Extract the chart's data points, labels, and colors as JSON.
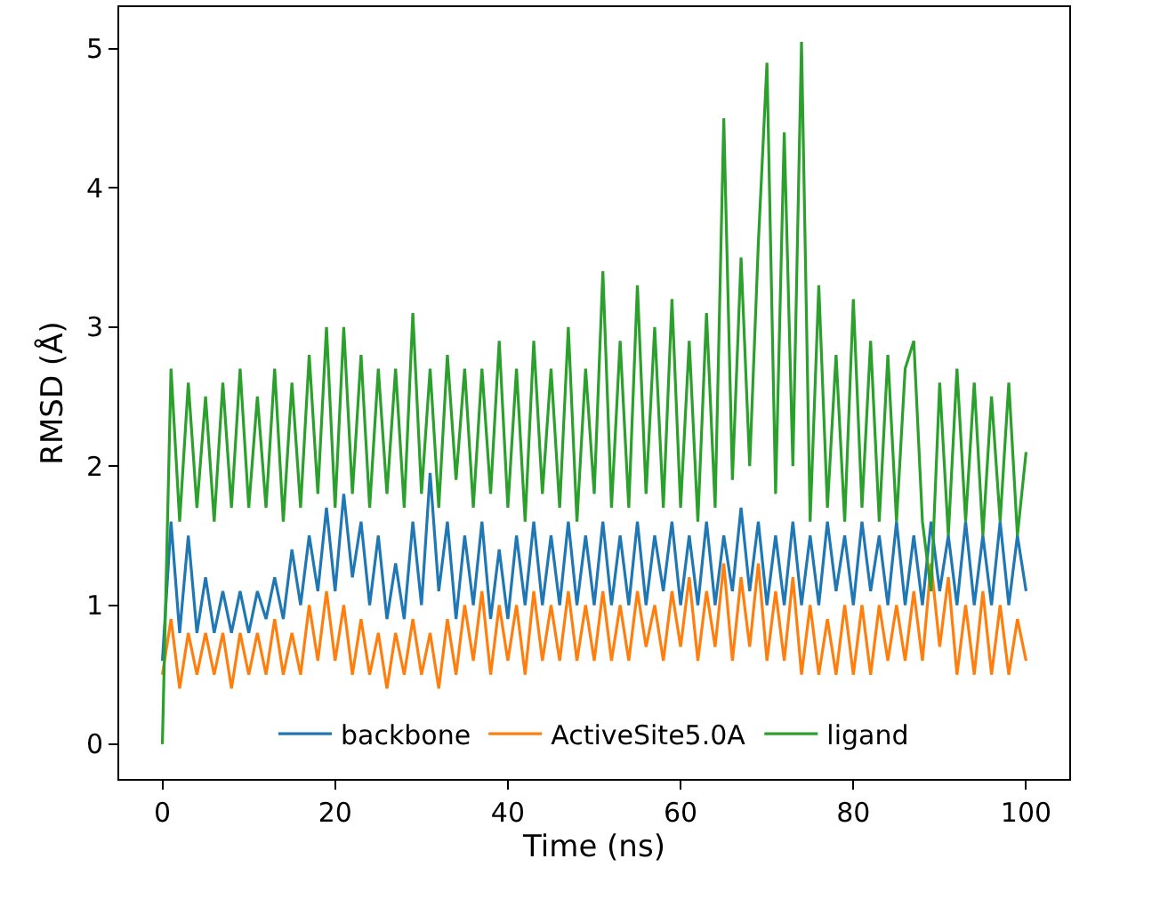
{
  "chart_data": {
    "type": "line",
    "xlabel": "Time (ns)",
    "ylabel": "RMSD (Å)",
    "xlim": [
      -5,
      105
    ],
    "ylim": [
      -0.25,
      5.3
    ],
    "xticks": [
      0,
      20,
      40,
      60,
      80,
      100
    ],
    "yticks": [
      0,
      1,
      2,
      3,
      4,
      5
    ],
    "grid": false,
    "legend": "bottom",
    "marker": "none",
    "line_style": "solid",
    "x": [
      0,
      1,
      2,
      3,
      4,
      5,
      6,
      7,
      8,
      9,
      10,
      11,
      12,
      13,
      14,
      15,
      16,
      17,
      18,
      19,
      20,
      21,
      22,
      23,
      24,
      25,
      26,
      27,
      28,
      29,
      30,
      31,
      32,
      33,
      34,
      35,
      36,
      37,
      38,
      39,
      40,
      41,
      42,
      43,
      44,
      45,
      46,
      47,
      48,
      49,
      50,
      51,
      52,
      53,
      54,
      55,
      56,
      57,
      58,
      59,
      60,
      61,
      62,
      63,
      64,
      65,
      66,
      67,
      68,
      69,
      70,
      71,
      72,
      73,
      74,
      75,
      76,
      77,
      78,
      79,
      80,
      81,
      82,
      83,
      84,
      85,
      86,
      87,
      88,
      89,
      90,
      91,
      92,
      93,
      94,
      95,
      96,
      97,
      98,
      99,
      100
    ],
    "series": [
      {
        "name": "backbone",
        "color": "#1f77b4",
        "values": [
          0.6,
          1.6,
          0.8,
          1.5,
          0.8,
          1.2,
          0.8,
          1.1,
          0.8,
          1.1,
          0.8,
          1.1,
          0.9,
          1.2,
          0.9,
          1.4,
          1.0,
          1.5,
          1.1,
          1.7,
          1.1,
          1.8,
          1.2,
          1.6,
          1.0,
          1.5,
          0.9,
          1.3,
          0.9,
          1.6,
          1.0,
          1.95,
          1.1,
          1.6,
          0.9,
          1.5,
          1.0,
          1.6,
          0.9,
          1.4,
          0.9,
          1.5,
          1.0,
          1.6,
          1.0,
          1.5,
          1.0,
          1.6,
          1.0,
          1.5,
          1.0,
          1.6,
          1.0,
          1.5,
          1.0,
          1.6,
          1.0,
          1.5,
          1.1,
          1.6,
          1.0,
          1.5,
          1.0,
          1.6,
          1.0,
          1.5,
          1.1,
          1.7,
          1.1,
          1.6,
          1.0,
          1.5,
          1.0,
          1.6,
          1.0,
          1.5,
          1.0,
          1.6,
          1.1,
          1.5,
          1.0,
          1.6,
          1.1,
          1.5,
          1.0,
          1.6,
          1.0,
          1.5,
          1.0,
          1.6,
          1.1,
          1.5,
          1.0,
          1.6,
          1.0,
          1.5,
          1.0,
          1.6,
          1.0,
          1.5,
          1.1
        ]
      },
      {
        "name": "ActiveSite5.0A",
        "color": "#ff7f0e",
        "values": [
          0.5,
          0.9,
          0.4,
          0.8,
          0.5,
          0.8,
          0.5,
          0.8,
          0.4,
          0.8,
          0.5,
          0.8,
          0.5,
          0.9,
          0.5,
          0.8,
          0.5,
          1.0,
          0.6,
          1.1,
          0.6,
          1.0,
          0.5,
          0.9,
          0.5,
          0.8,
          0.4,
          0.8,
          0.5,
          0.9,
          0.5,
          0.8,
          0.4,
          0.9,
          0.5,
          1.0,
          0.6,
          1.1,
          0.5,
          1.0,
          0.6,
          1.0,
          0.5,
          1.1,
          0.6,
          1.0,
          0.6,
          1.1,
          0.6,
          1.0,
          0.6,
          1.1,
          0.6,
          1.0,
          0.6,
          1.1,
          0.7,
          1.0,
          0.6,
          1.1,
          0.7,
          1.2,
          0.6,
          1.1,
          0.7,
          1.3,
          0.6,
          1.2,
          0.7,
          1.3,
          0.6,
          1.1,
          0.6,
          1.2,
          0.5,
          1.0,
          0.5,
          0.9,
          0.5,
          1.0,
          0.5,
          1.0,
          0.5,
          1.0,
          0.6,
          1.0,
          0.6,
          1.1,
          0.6,
          1.3,
          0.7,
          1.2,
          0.5,
          1.0,
          0.5,
          1.1,
          0.5,
          1.0,
          0.5,
          0.9,
          0.6
        ]
      },
      {
        "name": "ligand",
        "color": "#2ca02c",
        "values": [
          0.0,
          2.7,
          1.6,
          2.6,
          1.7,
          2.5,
          1.6,
          2.6,
          1.7,
          2.7,
          1.7,
          2.5,
          1.7,
          2.7,
          1.6,
          2.6,
          1.7,
          2.8,
          1.8,
          3.0,
          1.7,
          3.0,
          1.8,
          2.8,
          1.7,
          2.7,
          1.8,
          2.7,
          1.7,
          3.1,
          1.8,
          2.7,
          1.7,
          2.8,
          1.9,
          2.7,
          1.7,
          2.7,
          1.8,
          2.9,
          1.7,
          2.7,
          1.6,
          2.9,
          1.8,
          2.7,
          1.7,
          3.0,
          1.6,
          2.7,
          1.8,
          3.4,
          1.7,
          2.9,
          1.7,
          3.3,
          1.8,
          3.0,
          1.7,
          3.2,
          1.7,
          2.9,
          1.6,
          3.1,
          1.7,
          4.5,
          1.9,
          3.5,
          2.0,
          3.6,
          4.9,
          1.8,
          4.4,
          2.0,
          5.05,
          1.6,
          3.3,
          1.7,
          2.8,
          1.6,
          3.2,
          1.7,
          2.9,
          1.6,
          2.8,
          1.6,
          2.7,
          2.9,
          1.6,
          1.1,
          2.6,
          1.5,
          2.7,
          1.6,
          2.6,
          1.5,
          2.5,
          1.6,
          2.6,
          1.5,
          2.1
        ]
      }
    ]
  }
}
